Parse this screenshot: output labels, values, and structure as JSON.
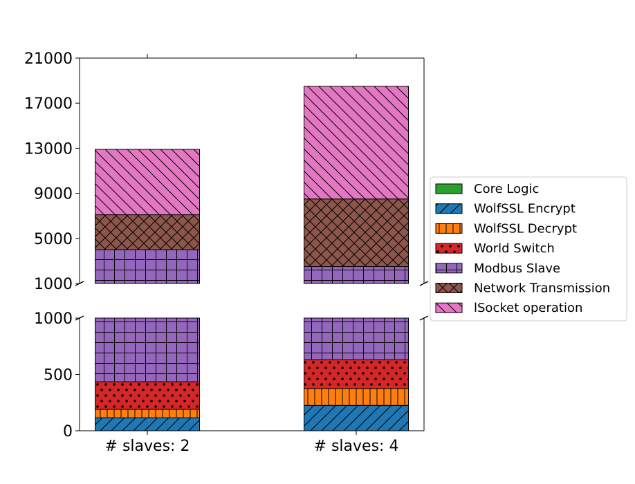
{
  "chart_data": {
    "type": "bar",
    "stacked": true,
    "broken_y_axis": true,
    "categories": [
      "# slaves: 2",
      "# slaves: 4"
    ],
    "series": [
      {
        "name": "Core Logic",
        "values": [
          0,
          0
        ],
        "color": "#2ca02c",
        "hatch": "none"
      },
      {
        "name": "WolfSSL Encrypt",
        "values": [
          115,
          225
        ],
        "color": "#1f77b4",
        "hatch": "diagonal"
      },
      {
        "name": "WolfSSL Decrypt",
        "values": [
          75,
          150
        ],
        "color": "#ff7f0e",
        "hatch": "vertical"
      },
      {
        "name": "World Switch",
        "values": [
          245,
          255
        ],
        "color": "#d62728",
        "hatch": "dots"
      },
      {
        "name": "Modbus Slave",
        "values": [
          3565,
          1870
        ],
        "color": "#9467bd",
        "hatch": "grid"
      },
      {
        "name": "Network Transmission",
        "values": [
          3100,
          6000
        ],
        "color": "#8c564b",
        "hatch": "crosshatch"
      },
      {
        "name": "lSocket operation",
        "values": [
          5800,
          10000
        ],
        "color": "#e377c2",
        "hatch": "backslash"
      }
    ],
    "upper_axis": {
      "ylim": [
        1000,
        21000
      ],
      "ticks": [
        "21000",
        "17000",
        "13000",
        "9000",
        "5000",
        "1000"
      ],
      "tick_values": [
        21000,
        17000,
        13000,
        9000,
        5000,
        1000
      ]
    },
    "lower_axis": {
      "ylim": [
        0,
        1000
      ],
      "ticks": [
        "1000",
        "500",
        "0"
      ],
      "tick_values": [
        1000,
        500,
        0
      ]
    },
    "legend_position": "right"
  }
}
